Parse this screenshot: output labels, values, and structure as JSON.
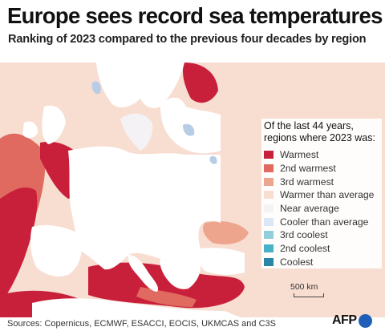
{
  "header": {
    "title": "Europe sees record sea temperatures",
    "subtitle": "Ranking of 2023 compared to the previous four decades by region"
  },
  "legend": {
    "heading_line1": "Of the last 44 years,",
    "heading_line2": "regions where 2023 was:",
    "items": [
      {
        "label": "Warmest",
        "color": "#c8203a"
      },
      {
        "label": "2nd warmest",
        "color": "#e06a60"
      },
      {
        "label": "3rd warmest",
        "color": "#eea58e"
      },
      {
        "label": "Warmer than average",
        "color": "#f8ddd1"
      },
      {
        "label": "Near average",
        "color": "#f4f2f4"
      },
      {
        "label": "Cooler than average",
        "color": "#dbe7f6"
      },
      {
        "label": "3rd coolest",
        "color": "#90cedb"
      },
      {
        "label": "2nd coolest",
        "color": "#4ab0c6"
      },
      {
        "label": "Coolest",
        "color": "#2a86a6"
      }
    ]
  },
  "map": {
    "land_color": "#ffffff",
    "lake_color": "#b7cde6"
  },
  "scale": {
    "label": "500 km"
  },
  "footer": {
    "sources": "Sources: Copernicus, ECMWF, ESACCI, EOCIS, UKMCAS and C3S",
    "logo_text": "AFP"
  }
}
